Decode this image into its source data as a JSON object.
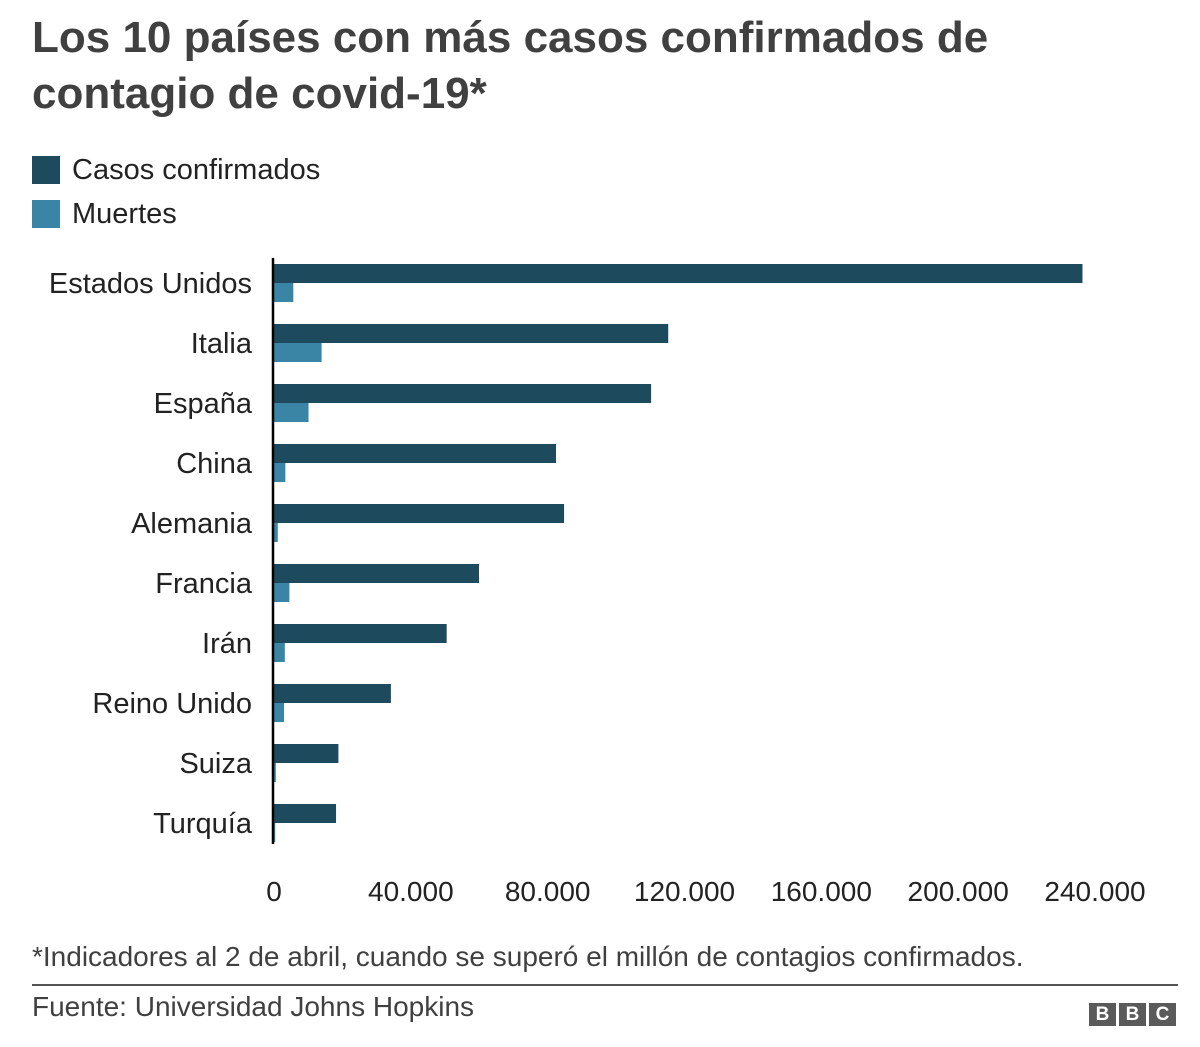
{
  "title": "Los 10 países con más casos confirmados de contagio de covid-19*",
  "legend": [
    {
      "label": "Casos confirmados",
      "color": "#1e4a5d"
    },
    {
      "label": "Muertes",
      "color": "#3a84a6"
    }
  ],
  "footnote": "*Indicadores al 2 de abril, cuando se superó el millón de contagios confirmados.",
  "source": "Fuente: Universidad Johns Hopkins",
  "logo": [
    "B",
    "B",
    "C"
  ],
  "chart_data": {
    "type": "bar",
    "orientation": "horizontal",
    "categories": [
      "Estados Unidos",
      "Italia",
      "España",
      "China",
      "Alemania",
      "Francia",
      "Irán",
      "Reino Unido",
      "Suiza",
      "Turquía"
    ],
    "series": [
      {
        "name": "Casos confirmados",
        "color": "#1e4a5d",
        "values": [
          236339,
          115242,
          110238,
          82432,
          84794,
          59929,
          50468,
          34173,
          18827,
          18135
        ]
      },
      {
        "name": "Muertes",
        "color": "#3a84a6",
        "values": [
          5648,
          13915,
          10096,
          3322,
          1107,
          4503,
          3160,
          2926,
          536,
          356
        ]
      }
    ],
    "xticks": [
      0,
      40000,
      80000,
      120000,
      160000,
      200000,
      240000
    ],
    "xtick_labels": [
      "0",
      "40.000",
      "80.000",
      "120.000",
      "160.000",
      "200.000",
      "240.000"
    ],
    "xlim": [
      0,
      240000
    ],
    "grid": false,
    "legend_position": "top-left"
  }
}
